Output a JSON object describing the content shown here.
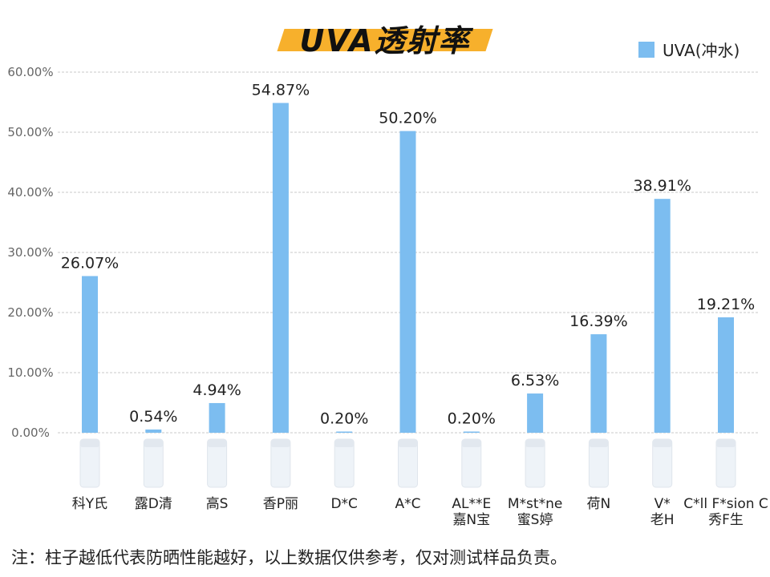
{
  "chart_data": {
    "type": "bar",
    "title": "UVA透射率",
    "series": [
      {
        "name": "UVA(冲水)",
        "color": "#7cbdf0",
        "values": [
          26.07,
          0.54,
          4.94,
          54.87,
          0.2,
          50.2,
          0.2,
          6.53,
          16.39,
          38.91,
          19.21
        ],
        "value_labels": [
          "26.07%",
          "0.54%",
          "4.94%",
          "54.87%",
          "0.20%",
          "50.20%",
          "0.20%",
          "6.53%",
          "16.39%",
          "38.91%",
          "19.21%"
        ]
      }
    ],
    "categories": [
      [
        "科Y氏"
      ],
      [
        "露D清"
      ],
      [
        "高S"
      ],
      [
        "香P丽"
      ],
      [
        "D*C"
      ],
      [
        "A*C"
      ],
      [
        "AL**E",
        "嘉N宝"
      ],
      [
        "M*st*ne",
        "蜜S婷"
      ],
      [
        "荷N"
      ],
      [
        "V*",
        "老H"
      ],
      [
        "C*ll F*sion C",
        "秀F生"
      ]
    ],
    "y_ticks": [
      "0.00%",
      "10.00%",
      "20.00%",
      "30.00%",
      "40.00%",
      "50.00%",
      "60.00%"
    ],
    "ylim": [
      0,
      60
    ],
    "grid": true,
    "legend_position": "top-right"
  },
  "footnote": "注：柱子越低代表防晒性能越好，以上数据仅供参考，仅对测试样品负责。"
}
